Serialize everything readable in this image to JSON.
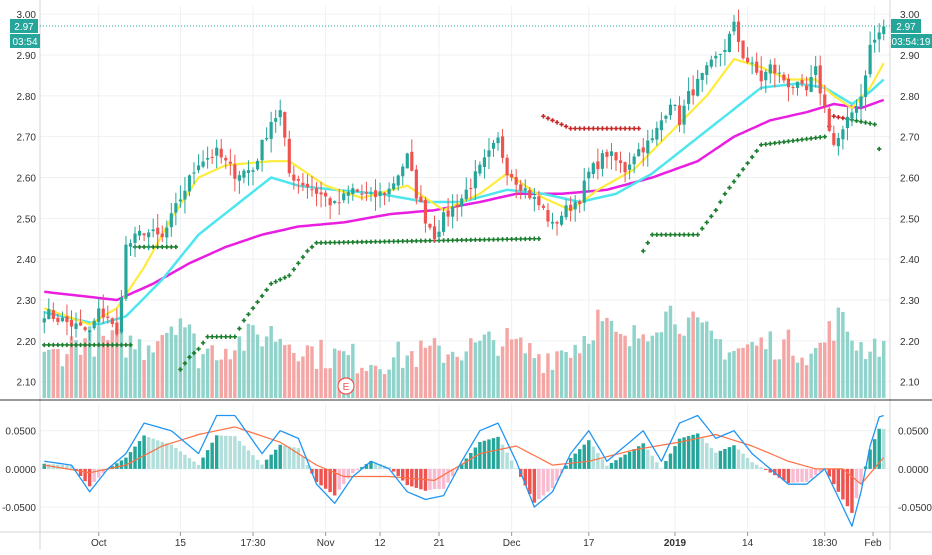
{
  "chart_data": [
    {
      "type": "candlestick",
      "title": "",
      "y_ticks": [
        "3.00",
        "2.90",
        "2.80",
        "2.70",
        "2.60",
        "2.50",
        "2.40",
        "2.30",
        "2.20",
        "2.10"
      ],
      "ylim": [
        2.06,
        3.02
      ],
      "x_ticks": [
        "Oct",
        "15",
        "17:30",
        "Nov",
        "12",
        "21",
        "Dec",
        "17",
        "2019",
        "14",
        "18:30",
        "Feb"
      ],
      "last_price": "2.97",
      "countdown_left": "03:54",
      "countdown_right": "03:54:19",
      "event_marker": "E",
      "grid": true,
      "colors": {
        "up": "#26a69a",
        "down": "#ef5350",
        "ema_fast": "#ffeb3b",
        "ema_mid": "#4ee6ee",
        "ema_slow": "#e91ee0",
        "psar": "#1b7d2e",
        "volume_up": "#8fd3cb",
        "volume_down": "#f4a6a4",
        "price_line": "#26a69a"
      },
      "price_anchors": [
        [
          0,
          2.27
        ],
        [
          6,
          2.24
        ],
        [
          10,
          2.22
        ],
        [
          12,
          2.27
        ],
        [
          14,
          2.26
        ],
        [
          16,
          2.21
        ],
        [
          18,
          2.43
        ],
        [
          22,
          2.47
        ],
        [
          26,
          2.45
        ],
        [
          30,
          2.55
        ],
        [
          34,
          2.64
        ],
        [
          38,
          2.66
        ],
        [
          42,
          2.61
        ],
        [
          46,
          2.62
        ],
        [
          50,
          2.74
        ],
        [
          52,
          2.76
        ],
        [
          54,
          2.61
        ],
        [
          58,
          2.58
        ],
        [
          62,
          2.55
        ],
        [
          64,
          2.53
        ],
        [
          68,
          2.57
        ],
        [
          72,
          2.55
        ],
        [
          76,
          2.57
        ],
        [
          80,
          2.65
        ],
        [
          82,
          2.56
        ],
        [
          84,
          2.5
        ],
        [
          86,
          2.46
        ],
        [
          88,
          2.5
        ],
        [
          92,
          2.55
        ],
        [
          96,
          2.62
        ],
        [
          100,
          2.69
        ],
        [
          102,
          2.62
        ],
        [
          106,
          2.57
        ],
        [
          110,
          2.52
        ],
        [
          112,
          2.48
        ],
        [
          114,
          2.51
        ],
        [
          118,
          2.55
        ],
        [
          120,
          2.61
        ],
        [
          124,
          2.66
        ],
        [
          128,
          2.62
        ],
        [
          130,
          2.66
        ],
        [
          134,
          2.69
        ],
        [
          138,
          2.79
        ],
        [
          140,
          2.74
        ],
        [
          142,
          2.8
        ],
        [
          146,
          2.86
        ],
        [
          150,
          2.92
        ],
        [
          152,
          2.97
        ],
        [
          154,
          2.9
        ],
        [
          158,
          2.84
        ],
        [
          160,
          2.87
        ],
        [
          164,
          2.83
        ],
        [
          168,
          2.81
        ],
        [
          170,
          2.86
        ],
        [
          172,
          2.77
        ],
        [
          174,
          2.68
        ],
        [
          176,
          2.71
        ],
        [
          178,
          2.76
        ],
        [
          180,
          2.8
        ],
        [
          182,
          2.92
        ],
        [
          185,
          2.97
        ]
      ],
      "ema_fast_anchors": [
        [
          0,
          2.28
        ],
        [
          10,
          2.24
        ],
        [
          16,
          2.28
        ],
        [
          22,
          2.38
        ],
        [
          28,
          2.5
        ],
        [
          34,
          2.6
        ],
        [
          40,
          2.63
        ],
        [
          50,
          2.64
        ],
        [
          54,
          2.64
        ],
        [
          62,
          2.58
        ],
        [
          70,
          2.55
        ],
        [
          80,
          2.58
        ],
        [
          88,
          2.52
        ],
        [
          96,
          2.56
        ],
        [
          102,
          2.61
        ],
        [
          110,
          2.55
        ],
        [
          116,
          2.52
        ],
        [
          122,
          2.57
        ],
        [
          130,
          2.62
        ],
        [
          138,
          2.71
        ],
        [
          146,
          2.8
        ],
        [
          152,
          2.89
        ],
        [
          158,
          2.87
        ],
        [
          164,
          2.84
        ],
        [
          170,
          2.84
        ],
        [
          174,
          2.8
        ],
        [
          178,
          2.77
        ],
        [
          182,
          2.82
        ],
        [
          185,
          2.88
        ]
      ],
      "ema_mid_anchors": [
        [
          0,
          2.27
        ],
        [
          12,
          2.24
        ],
        [
          18,
          2.26
        ],
        [
          26,
          2.35
        ],
        [
          34,
          2.46
        ],
        [
          42,
          2.53
        ],
        [
          50,
          2.6
        ],
        [
          56,
          2.58
        ],
        [
          64,
          2.57
        ],
        [
          74,
          2.56
        ],
        [
          84,
          2.54
        ],
        [
          92,
          2.54
        ],
        [
          102,
          2.57
        ],
        [
          110,
          2.56
        ],
        [
          118,
          2.54
        ],
        [
          126,
          2.56
        ],
        [
          134,
          2.61
        ],
        [
          142,
          2.68
        ],
        [
          150,
          2.75
        ],
        [
          158,
          2.82
        ],
        [
          166,
          2.83
        ],
        [
          172,
          2.82
        ],
        [
          178,
          2.78
        ],
        [
          182,
          2.81
        ],
        [
          185,
          2.84
        ]
      ],
      "ema_slow_anchors": [
        [
          0,
          2.32
        ],
        [
          8,
          2.31
        ],
        [
          16,
          2.3
        ],
        [
          24,
          2.34
        ],
        [
          32,
          2.39
        ],
        [
          40,
          2.43
        ],
        [
          48,
          2.46
        ],
        [
          56,
          2.48
        ],
        [
          66,
          2.49
        ],
        [
          76,
          2.51
        ],
        [
          86,
          2.52
        ],
        [
          96,
          2.54
        ],
        [
          104,
          2.56
        ],
        [
          114,
          2.56
        ],
        [
          124,
          2.57
        ],
        [
          134,
          2.6
        ],
        [
          144,
          2.64
        ],
        [
          152,
          2.7
        ],
        [
          160,
          2.74
        ],
        [
          168,
          2.76
        ],
        [
          174,
          2.78
        ],
        [
          180,
          2.77
        ],
        [
          185,
          2.79
        ]
      ],
      "psar_points": [
        [
          0,
          2.19
        ],
        [
          10,
          2.19
        ],
        [
          12,
          2.19
        ],
        [
          20,
          2.43
        ],
        [
          28,
          2.43
        ],
        [
          30,
          2.13
        ],
        [
          32,
          2.16
        ],
        [
          34,
          2.18
        ],
        [
          36,
          2.21
        ],
        [
          42,
          2.21
        ],
        [
          44,
          2.25
        ],
        [
          46,
          2.28
        ],
        [
          48,
          2.31
        ],
        [
          50,
          2.34
        ],
        [
          54,
          2.36
        ],
        [
          56,
          2.39
        ],
        [
          58,
          2.42
        ],
        [
          60,
          2.44
        ],
        [
          108,
          2.45
        ],
        [
          110,
          2.75
        ],
        [
          116,
          2.72
        ],
        [
          130,
          2.72
        ],
        [
          132,
          2.42
        ],
        [
          134,
          2.46
        ],
        [
          144,
          2.46
        ],
        [
          146,
          2.49
        ],
        [
          148,
          2.52
        ],
        [
          150,
          2.56
        ],
        [
          152,
          2.59
        ],
        [
          154,
          2.62
        ],
        [
          156,
          2.65
        ],
        [
          158,
          2.68
        ],
        [
          172,
          2.7
        ],
        [
          174,
          2.75
        ],
        [
          183,
          2.73
        ],
        [
          184,
          2.67
        ],
        [
          185,
          2.69
        ]
      ],
      "volume_peaks": [
        [
          0,
          0.3
        ],
        [
          8,
          0.6
        ],
        [
          18,
          0.55
        ],
        [
          22,
          0.5
        ],
        [
          30,
          0.95
        ],
        [
          34,
          0.4
        ],
        [
          50,
          0.7
        ],
        [
          60,
          0.4
        ],
        [
          72,
          0.3
        ],
        [
          84,
          0.4
        ],
        [
          96,
          0.5
        ],
        [
          100,
          0.6
        ],
        [
          110,
          0.35
        ],
        [
          118,
          0.55
        ],
        [
          122,
          0.9
        ],
        [
          128,
          0.5
        ],
        [
          134,
          0.85
        ],
        [
          138,
          1.0
        ],
        [
          146,
          0.65
        ],
        [
          152,
          0.45
        ],
        [
          160,
          0.55
        ],
        [
          166,
          0.5
        ],
        [
          170,
          0.4
        ],
        [
          175,
          0.9
        ],
        [
          180,
          0.5
        ],
        [
          184,
          0.55
        ]
      ]
    },
    {
      "type": "macd",
      "y_ticks": [
        "0.0500",
        "0.0000",
        "-0.0500"
      ],
      "ylim": [
        -0.08,
        0.085
      ],
      "colors": {
        "macd_line": "#2196f3",
        "signal_line": "#ff7043",
        "hist_up_strong": "#26a69a",
        "hist_up_weak": "#b2dfdb",
        "hist_down_strong": "#ef5350",
        "hist_down_weak": "#f8bbd0"
      },
      "macd_anchors": [
        [
          0,
          0.01
        ],
        [
          6,
          0.005
        ],
        [
          10,
          -0.03
        ],
        [
          14,
          0.0
        ],
        [
          18,
          0.02
        ],
        [
          22,
          0.06
        ],
        [
          28,
          0.05
        ],
        [
          34,
          0.02
        ],
        [
          38,
          0.07
        ],
        [
          42,
          0.07
        ],
        [
          48,
          0.02
        ],
        [
          52,
          0.05
        ],
        [
          56,
          0.04
        ],
        [
          60,
          -0.02
        ],
        [
          64,
          -0.045
        ],
        [
          68,
          -0.01
        ],
        [
          72,
          0.01
        ],
        [
          76,
          0.0
        ],
        [
          80,
          -0.03
        ],
        [
          84,
          -0.04
        ],
        [
          88,
          -0.035
        ],
        [
          92,
          0.01
        ],
        [
          96,
          0.05
        ],
        [
          100,
          0.06
        ],
        [
          104,
          0.01
        ],
        [
          108,
          -0.05
        ],
        [
          112,
          -0.03
        ],
        [
          116,
          0.02
        ],
        [
          120,
          0.05
        ],
        [
          124,
          0.01
        ],
        [
          128,
          0.03
        ],
        [
          132,
          0.05
        ],
        [
          136,
          0.01
        ],
        [
          140,
          0.06
        ],
        [
          144,
          0.07
        ],
        [
          148,
          0.04
        ],
        [
          152,
          0.05
        ],
        [
          156,
          0.02
        ],
        [
          160,
          0.0
        ],
        [
          164,
          -0.02
        ],
        [
          168,
          -0.02
        ],
        [
          172,
          0.0
        ],
        [
          176,
          -0.05
        ],
        [
          178,
          -0.075
        ],
        [
          180,
          -0.03
        ],
        [
          182,
          0.03
        ],
        [
          184,
          0.068
        ],
        [
          185,
          0.07
        ]
      ],
      "signal_anchors": [
        [
          0,
          0.005
        ],
        [
          10,
          -0.005
        ],
        [
          18,
          0.005
        ],
        [
          26,
          0.03
        ],
        [
          34,
          0.045
        ],
        [
          42,
          0.055
        ],
        [
          52,
          0.035
        ],
        [
          60,
          0.005
        ],
        [
          66,
          -0.01
        ],
        [
          76,
          -0.01
        ],
        [
          86,
          -0.015
        ],
        [
          96,
          0.02
        ],
        [
          104,
          0.03
        ],
        [
          112,
          0.005
        ],
        [
          120,
          0.01
        ],
        [
          130,
          0.025
        ],
        [
          140,
          0.035
        ],
        [
          148,
          0.045
        ],
        [
          156,
          0.03
        ],
        [
          164,
          0.01
        ],
        [
          170,
          0.0
        ],
        [
          176,
          0.0
        ],
        [
          180,
          -0.02
        ],
        [
          185,
          0.015
        ]
      ]
    }
  ]
}
